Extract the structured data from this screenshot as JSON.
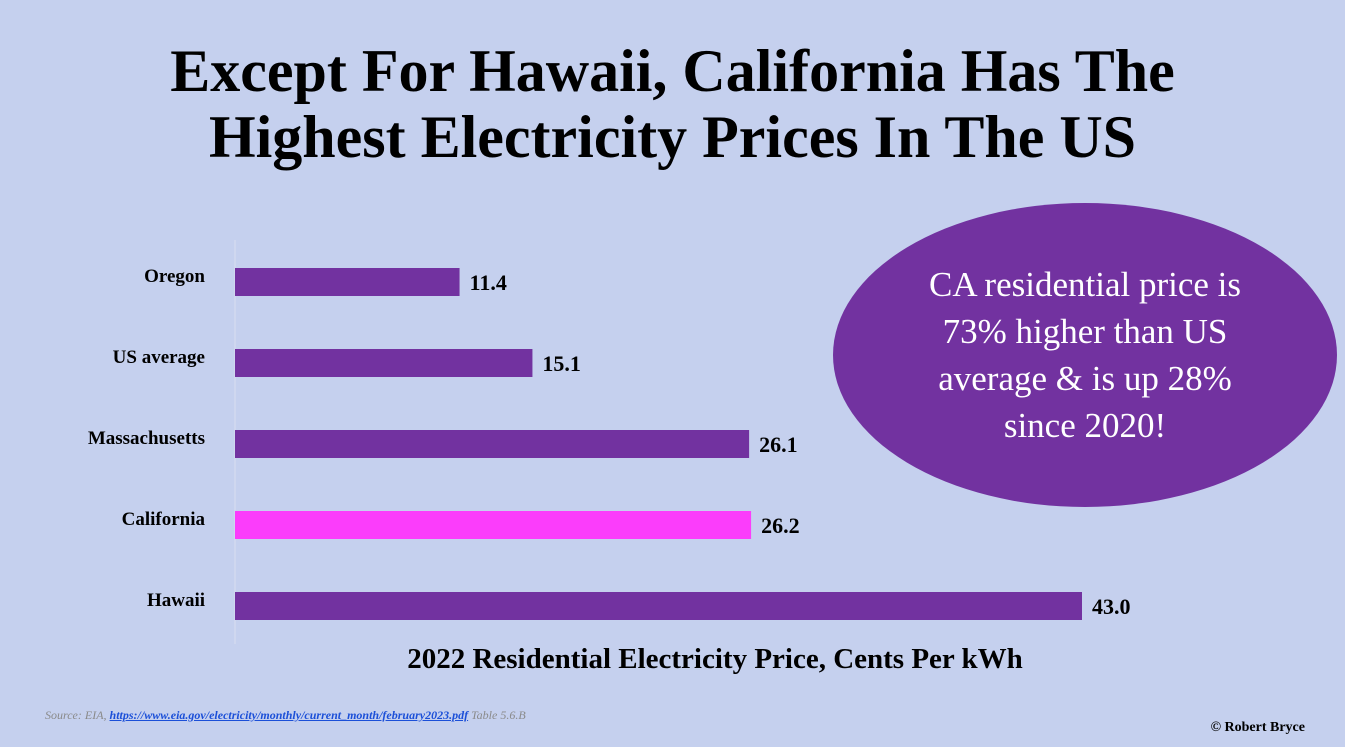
{
  "title_line1": "Except For Hawaii, California Has The",
  "title_line2": "Highest Electricity Prices In The US",
  "callout_text": "CA residential price is 73% higher than US average & is up 28% since 2020!",
  "source": {
    "prefix": "Source: EIA, ",
    "link": "https://www.eia.gov/electricity/monthly/current_month/february2023.pdf",
    "suffix": " Table 5.6.B"
  },
  "copyright": "© Robert Bryce",
  "colors": {
    "background": "#c5d0ee",
    "bar": "#7232a0",
    "highlight_bar": "#fb3dfb",
    "callout": "#7232a0"
  },
  "chart_data": {
    "type": "bar",
    "orientation": "horizontal",
    "title": "Except For Hawaii, California Has The Highest Electricity Prices In The US",
    "xlabel": "2022 Residential Electricity Price, Cents Per kWh",
    "ylabel": "",
    "categories": [
      "Oregon",
      "US average",
      "Massachusetts",
      "California",
      "Hawaii"
    ],
    "values": [
      11.4,
      15.1,
      26.1,
      26.2,
      43.0
    ],
    "value_labels": [
      "11.4",
      "15.1",
      "26.1",
      "26.2",
      "43.0"
    ],
    "highlight": "California",
    "xlim": [
      0,
      43.0
    ],
    "grid": false,
    "legend": "none"
  }
}
